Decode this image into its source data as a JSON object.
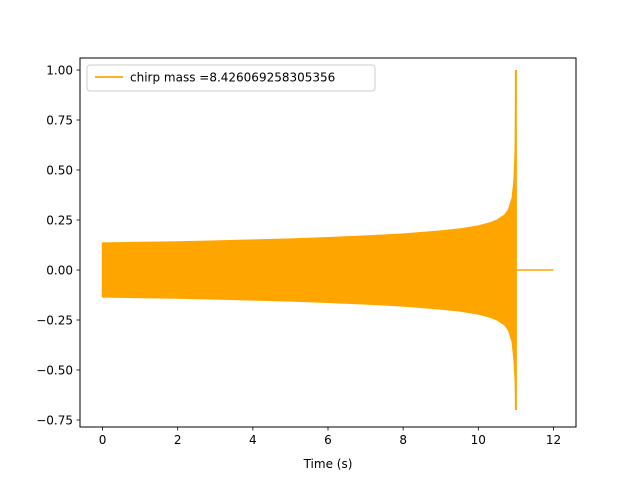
{
  "chart_data": {
    "type": "line",
    "title": "",
    "xlabel": "Time (s)",
    "ylabel": "",
    "xlim": [
      -0.6,
      12.6
    ],
    "ylim": [
      -0.785,
      1.06
    ],
    "x_ticks": [
      0,
      2,
      4,
      6,
      8,
      10,
      12
    ],
    "y_ticks": [
      -0.75,
      -0.5,
      -0.25,
      0.0,
      0.25,
      0.5,
      0.75,
      1.0
    ],
    "x_tick_labels": [
      "0",
      "2",
      "4",
      "6",
      "8",
      "10",
      "12"
    ],
    "y_tick_labels": [
      "−0.75",
      "−0.50",
      "−0.25",
      "0.00",
      "0.25",
      "0.50",
      "0.75",
      "1.00"
    ],
    "grid": false,
    "legend_position": "top-left",
    "series": [
      {
        "name": "chirp mass =8.426069258305356",
        "color": "#ffa500",
        "envelope_upper": {
          "x": [
            0,
            1,
            2,
            3,
            4,
            5,
            6,
            7,
            8,
            9,
            9.5,
            10,
            10.3,
            10.5,
            10.7,
            10.8,
            10.9,
            10.95,
            10.98,
            11.0
          ],
          "y": [
            0.135,
            0.138,
            0.141,
            0.145,
            0.15,
            0.155,
            0.162,
            0.17,
            0.18,
            0.195,
            0.205,
            0.22,
            0.235,
            0.25,
            0.275,
            0.3,
            0.36,
            0.45,
            0.6,
            1.0
          ]
        },
        "envelope_lower": {
          "x": [
            0,
            1,
            2,
            3,
            4,
            5,
            6,
            7,
            8,
            9,
            9.5,
            10,
            10.3,
            10.5,
            10.7,
            10.8,
            10.9,
            10.95,
            10.98,
            11.0
          ],
          "y": [
            -0.135,
            -0.138,
            -0.141,
            -0.145,
            -0.15,
            -0.155,
            -0.162,
            -0.17,
            -0.18,
            -0.195,
            -0.205,
            -0.22,
            -0.235,
            -0.25,
            -0.275,
            -0.3,
            -0.36,
            -0.45,
            -0.55,
            -0.7
          ]
        },
        "tail": {
          "x": [
            11.0,
            12.0
          ],
          "y": [
            0.0,
            0.0
          ]
        }
      }
    ]
  }
}
